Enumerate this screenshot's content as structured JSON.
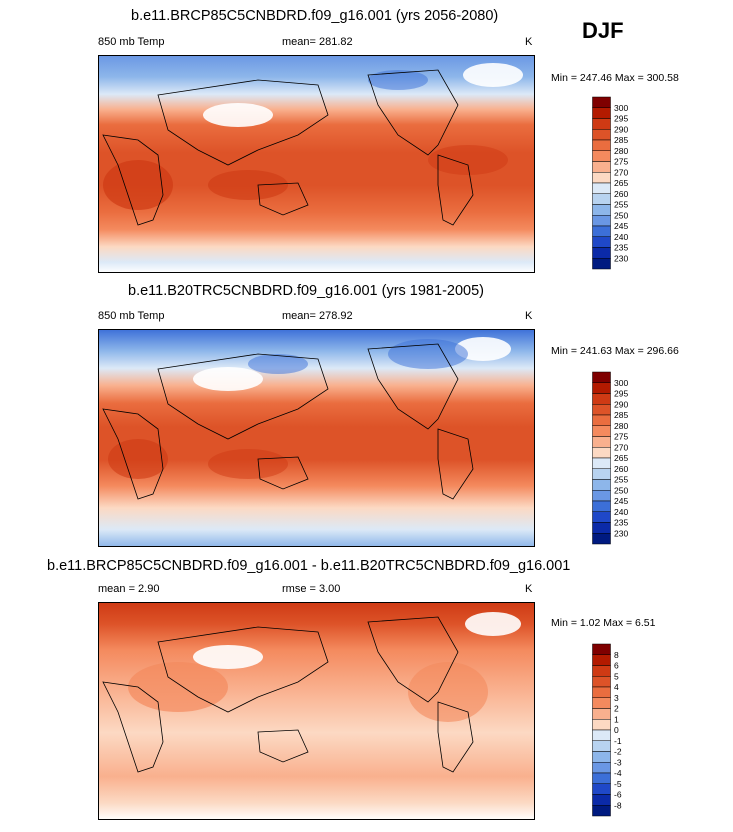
{
  "season": "DJF",
  "panels": [
    {
      "title": "b.e11.BRCP85C5CNBDRD.f09_g16.001 (yrs 2056-2080)",
      "left_label": "850 mb Temp",
      "center_label": "mean= 281.82",
      "units": "K",
      "minmax": "Min = 247.46 Max = 300.58"
    },
    {
      "title": "b.e11.B20TRC5CNBDRD.f09_g16.001 (yrs 1981-2005)",
      "left_label": "850 mb Temp",
      "center_label": "mean= 278.92",
      "units": "K",
      "minmax": "Min = 241.63 Max = 296.66"
    },
    {
      "title": "b.e11.BRCP85C5CNBDRD.f09_g16.001 - b.e11.B20TRC5CNBDRD.f09_g16.001",
      "left_label": "mean =   2.90",
      "center_label": "rmse =   3.00",
      "units": "K",
      "minmax": "Min =  1.02 Max =   6.51"
    }
  ],
  "chart_data": [
    {
      "type": "heatmap",
      "title": "b.e11.BRCP85C5CNBDRD.f09_g16.001 (yrs 2056-2080)",
      "variable": "850 mb Temp",
      "units": "K",
      "mean": 281.82,
      "min": 247.46,
      "max": 300.58,
      "colorbar_levels": [
        300,
        295,
        290,
        285,
        280,
        275,
        270,
        265,
        260,
        255,
        250,
        245,
        240,
        235,
        230
      ],
      "colorbar_colors": [
        "#7f0000",
        "#b31a00",
        "#cf3a14",
        "#dd5328",
        "#ea6d3f",
        "#f48a5e",
        "#f9b08e",
        "#fcd9c3",
        "#dce9f7",
        "#b8d3f0",
        "#8db6ea",
        "#6a97e4",
        "#3c6fd8",
        "#1f48c8",
        "#0b2aa8",
        "#001a80"
      ]
    },
    {
      "type": "heatmap",
      "title": "b.e11.B20TRC5CNBDRD.f09_g16.001 (yrs 1981-2005)",
      "variable": "850 mb Temp",
      "units": "K",
      "mean": 278.92,
      "min": 241.63,
      "max": 296.66,
      "colorbar_levels": [
        300,
        295,
        290,
        285,
        280,
        275,
        270,
        265,
        260,
        255,
        250,
        245,
        240,
        235,
        230
      ],
      "colorbar_colors": [
        "#7f0000",
        "#b31a00",
        "#cf3a14",
        "#dd5328",
        "#ea6d3f",
        "#f48a5e",
        "#f9b08e",
        "#fcd9c3",
        "#dce9f7",
        "#b8d3f0",
        "#8db6ea",
        "#6a97e4",
        "#3c6fd8",
        "#1f48c8",
        "#0b2aa8",
        "#001a80"
      ]
    },
    {
      "type": "heatmap",
      "title": "b.e11.BRCP85C5CNBDRD.f09_g16.001 - b.e11.B20TRC5CNBDRD.f09_g16.001",
      "units": "K",
      "mean": 2.9,
      "rmse": 3.0,
      "min": 1.02,
      "max": 6.51,
      "colorbar_levels": [
        8,
        6,
        5,
        4,
        3,
        2,
        1,
        0,
        -1,
        -2,
        -3,
        -4,
        -5,
        -6,
        -8
      ],
      "colorbar_colors": [
        "#7f0000",
        "#b31a00",
        "#cf3a14",
        "#dd5328",
        "#ea6d3f",
        "#f48a5e",
        "#f9b08e",
        "#fcd9c3",
        "#dce9f7",
        "#b8d3f0",
        "#8db6ea",
        "#6a97e4",
        "#3c6fd8",
        "#1f48c8",
        "#0b2aa8",
        "#001a80"
      ]
    }
  ]
}
